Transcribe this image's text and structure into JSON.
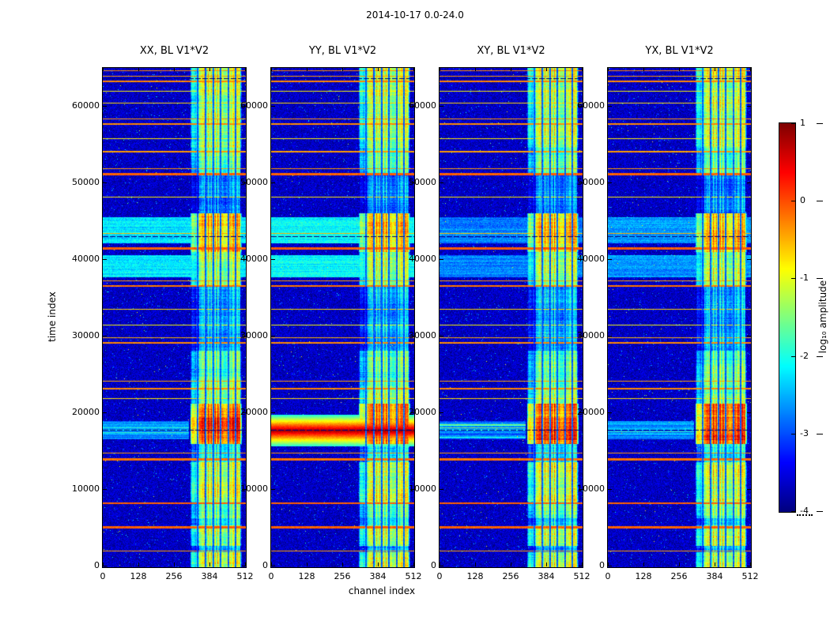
{
  "chart_data": {
    "type": "heatmap",
    "title": "2014-10-17 0.0-24.0",
    "xlabel": "channel index",
    "ylabel": "time index",
    "panels": [
      {
        "id": "xx",
        "title": "XX, BL V1*V2"
      },
      {
        "id": "yy",
        "title": "YY, BL V1*V2"
      },
      {
        "id": "xy",
        "title": "XY, BL V1*V2"
      },
      {
        "id": "yx",
        "title": "YX, BL V1*V2"
      }
    ],
    "xlim": [
      0,
      512
    ],
    "ylim": [
      0,
      65000
    ],
    "xticks": [
      0,
      128,
      256,
      384,
      512
    ],
    "yticks": [
      0,
      10000,
      20000,
      30000,
      40000,
      50000,
      60000
    ],
    "grid": false,
    "legend": "none",
    "colorbar": {
      "label": "log₁₀ amplitude",
      "ticks": [
        1,
        0,
        -1,
        -2,
        -3,
        -4
      ],
      "vmin": -4,
      "vmax": 1,
      "colormap": "jet"
    },
    "heatmap_model": {
      "background_level": -3.5,
      "active_band_channels": [
        313,
        498
      ],
      "band_left_soft_channels": 32,
      "notch_channels": [
        341,
        369,
        396,
        423,
        450,
        476
      ],
      "band_time_segments": [
        [
          0,
          1900,
          -0.4
        ],
        [
          1900,
          2700,
          -1.6
        ],
        [
          2700,
          5400,
          -0.5
        ],
        [
          5400,
          6300,
          -1.4
        ],
        [
          6300,
          8500,
          -0.8
        ],
        [
          8500,
          13700,
          -0.35
        ],
        [
          13700,
          16000,
          -1.3
        ],
        [
          16000,
          21300,
          0.55
        ],
        [
          21300,
          24700,
          -0.7
        ],
        [
          24700,
          28200,
          -0.9
        ],
        [
          28200,
          36600,
          -1.7
        ],
        [
          36600,
          41100,
          -0.55
        ],
        [
          41100,
          46100,
          0.1
        ],
        [
          46100,
          51100,
          -1.9
        ],
        [
          51100,
          54600,
          -0.9
        ],
        [
          54600,
          63100,
          -0.5
        ],
        [
          63100,
          65001,
          -0.25
        ]
      ],
      "rfi_lines": [
        [
          2100,
          -0.4,
          1
        ],
        [
          5300,
          -0.1,
          3
        ],
        [
          8350,
          -0.1,
          2
        ],
        [
          14100,
          -0.2,
          3
        ],
        [
          14800,
          -0.4,
          1
        ],
        [
          21900,
          -0.7,
          1
        ],
        [
          23300,
          -0.3,
          2
        ],
        [
          24200,
          -0.4,
          1
        ],
        [
          29300,
          -0.3,
          2
        ],
        [
          29900,
          -0.5,
          1
        ],
        [
          31500,
          -0.9,
          1
        ],
        [
          33600,
          -0.7,
          1
        ],
        [
          36700,
          -0.2,
          2
        ],
        [
          37300,
          -0.4,
          1
        ],
        [
          41600,
          -0.1,
          3
        ],
        [
          43500,
          -0.5,
          1
        ],
        [
          48200,
          -0.8,
          1
        ],
        [
          51300,
          -0.1,
          3
        ],
        [
          51900,
          -0.4,
          1
        ],
        [
          54200,
          -0.4,
          2
        ],
        [
          55800,
          -0.8,
          1
        ],
        [
          57800,
          -0.3,
          2
        ],
        [
          58400,
          -0.4,
          1
        ],
        [
          60500,
          -0.7,
          1
        ],
        [
          62000,
          -0.8,
          1
        ],
        [
          63400,
          -0.3,
          2
        ],
        [
          64000,
          -0.4,
          1
        ],
        [
          64700,
          -0.3,
          1
        ]
      ],
      "dark_dashed_lines": [
        63700,
        43100,
        17850
      ],
      "cyan_bands": [
        [
          37800,
          40600
        ],
        [
          42200,
          45600
        ]
      ],
      "cyan_strength_per_panel": [
        0.9,
        1.0,
        0.3,
        0.45
      ],
      "broadband_event": {
        "panel": "yy",
        "time_range": [
          15700,
          19800
        ],
        "peak_time": 17750,
        "peak_value": 0.85,
        "edge_value": -2.0
      },
      "left_streak_event": {
        "panels": [
          "xx",
          "xy",
          "yx"
        ],
        "time_range": [
          16600,
          19000
        ]
      },
      "core_boost": {
        "time_range": [
          16500,
          19500
        ],
        "amount": 0.25
      }
    }
  }
}
